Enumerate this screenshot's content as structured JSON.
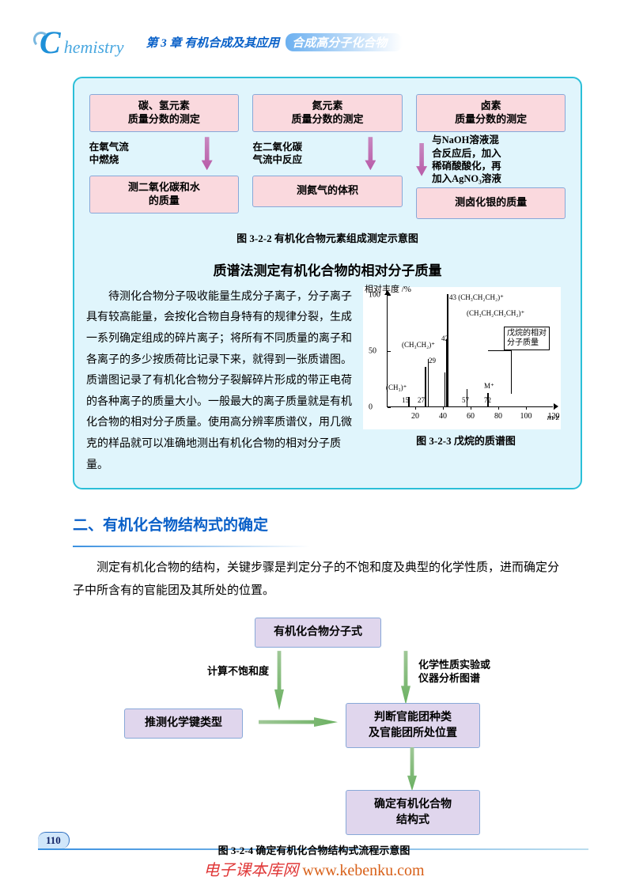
{
  "header": {
    "logo_c": "C",
    "logo_text": "hemistry",
    "chapter": "第 3 章   有机合成及其应用",
    "subtitle": "合成高分子化合物"
  },
  "flow1": {
    "cols": [
      {
        "top": "碳、氢元素\n质量分数的测定",
        "mid": "在氧气流\n中燃烧",
        "bot": "测二氧化碳和水\n的质量"
      },
      {
        "top": "氮元素\n质量分数的测定",
        "mid": "在二氧化碳\n气流中反应",
        "bot": "测氮气的体积"
      },
      {
        "top": "卤素\n质量分数的测定",
        "mid": "与NaOH溶液混\n合反应后，加入\n稀硝酸酸化，再\n加入AgNO₃溶液",
        "bot": "测卤化银的质量"
      }
    ],
    "caption": "图 3-2-2  有机化合物元素组成测定示意图"
  },
  "ms": {
    "title": "质谱法测定有机化合物的相对分子质量",
    "para": "待测化合物分子吸收能量生成分子离子，分子离子具有较高能量，会按化合物自身特有的规律分裂，生成一系列确定组成的碎片离子；将所有不同质量的离子和各离子的多少按质荷比记录下来，就得到一张质谱图。质谱图记录了有机化合物分子裂解碎片形成的带正电荷的各种离子的质量大小。一般最大的离子质量就是有机化合物的相对分子质量。使用高分辨率质谱仪，用几微克的样品就可以准确地测出有机化合物的相对分子质量。",
    "chartCaption": "图 3-2-3  戊烷的质谱图",
    "ytitle": "相对丰度 /%",
    "xtitle": "m/z",
    "ylim": [
      0,
      100
    ],
    "ytick_step": 50,
    "xlim": [
      0,
      120
    ],
    "xtick_step": 20,
    "peaks": [
      {
        "x": 15,
        "h": 8,
        "label": "(CH₃)⁺",
        "lbl_val": "15"
      },
      {
        "x": 27,
        "h": 35,
        "label": "(CH₃CH₂)⁺",
        "lbl_val": "27"
      },
      {
        "x": 29,
        "h": 42,
        "lbl_val": "29"
      },
      {
        "x": 41,
        "h": 30
      },
      {
        "x": 42,
        "h": 60,
        "label": "(CH₃CH₂CH₂)⁺"
      },
      {
        "x": 43,
        "h": 100,
        "lbl_val": "43 (CH₃CH₂CH₂)⁺"
      },
      {
        "x": 57,
        "h": 15,
        "label": "(CH₃CH₂CH₂CH₂)⁺",
        "lbl_val": "57"
      },
      {
        "x": 72,
        "h": 12,
        "label": "M⁺",
        "lbl_val": "72"
      }
    ],
    "anno": "戊烷的相对\n分子质量",
    "background_color": "#ffffff",
    "axis_color": "#000000",
    "label_fontsize": 10
  },
  "section2": {
    "heading": "二、有机化合物结构式的确定",
    "para": "测定有机化合物的结构，关键步骤是判定分子的不饱和度及典型的化学性质，进而确定分子中所含有的官能团及其所处的位置。",
    "flow": {
      "top": "有机化合物分子式",
      "left_label": "计算不饱和度",
      "right_label": "化学性质实验或\n仪器分析图谱",
      "midL": "推测化学键类型",
      "midR": "判断官能团种类\n及官能团所处位置",
      "bot": "确定有机化合物\n结构式"
    },
    "caption": "图 3-2-4  确定有机化合物结构式流程示意图"
  },
  "pageNum": "110",
  "footer": {
    "site": "电子课本库网",
    "url": "www.kebenku.com"
  },
  "colors": {
    "bluebox_border": "#2bbfd8",
    "bluebox_bg": "#e0f5fc",
    "pinkbox_bg": "#fad9de",
    "lavbox_bg": "#e0d6ed",
    "header_blue": "#0860c8"
  }
}
